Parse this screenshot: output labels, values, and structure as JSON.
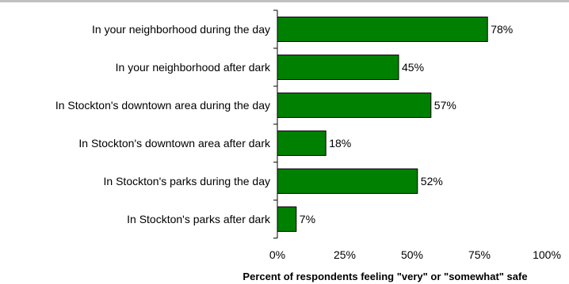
{
  "chart_data": {
    "type": "bar",
    "orientation": "horizontal",
    "categories": [
      "In your neighborhood during the day",
      "In your neighborhood after dark",
      "In Stockton's downtown area during the day",
      "In Stockton's downtown area after dark",
      "In Stockton's parks during the day",
      "In Stockton's parks after dark"
    ],
    "values": [
      78,
      45,
      57,
      18,
      52,
      7
    ],
    "data_labels": [
      "78%",
      "45%",
      "57%",
      "18%",
      "52%",
      "7%"
    ],
    "xlabel": "Percent of respondents feeling \"very\" or \"somewhat\" safe",
    "ylabel": "",
    "xlim": [
      0,
      100
    ],
    "xticks": [
      0,
      25,
      50,
      75,
      100
    ],
    "xtick_labels": [
      "0%",
      "25%",
      "50%",
      "75%",
      "100%"
    ],
    "grid": false,
    "legend": "none",
    "colors": {
      "bar_fill": "#008000",
      "bar_stroke": "#000000",
      "top_rule": "#c0c0c0"
    }
  }
}
